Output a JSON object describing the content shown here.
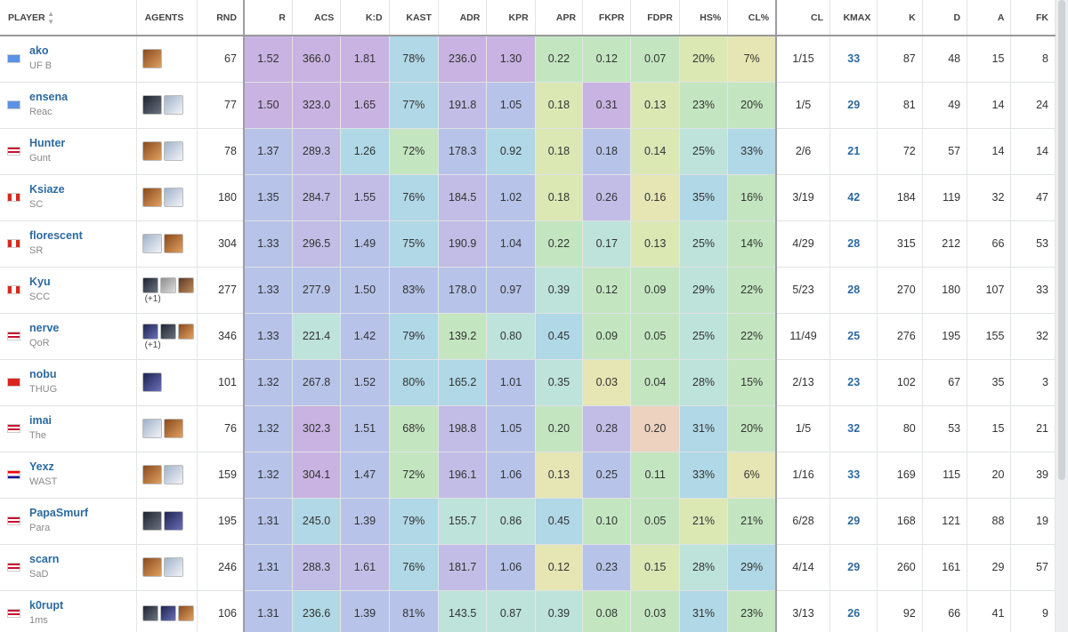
{
  "colors": {
    "purple_strong": "#c9b3e2",
    "purple": "#c2bde6",
    "lavender_blue": "#b7c3e8",
    "blue": "#b0d8e6",
    "teal": "#bde3da",
    "green": "#c3e6c0",
    "yellow_green": "#dbe8b4",
    "yellow": "#e5e6b4",
    "orange": "#ecd2bf",
    "link": "#2c6aa0"
  },
  "columns": [
    {
      "key": "player",
      "label": "PLAYER",
      "sortable": true
    },
    {
      "key": "agents",
      "label": "AGENTS",
      "sortable": false
    },
    {
      "key": "rnd",
      "label": "RND",
      "sortable": true
    },
    {
      "key": "r",
      "label": "R",
      "sortable": true
    },
    {
      "key": "acs",
      "label": "ACS",
      "sortable": true
    },
    {
      "key": "kd",
      "label": "K:D",
      "sortable": true
    },
    {
      "key": "kast",
      "label": "KAST",
      "sortable": true
    },
    {
      "key": "adr",
      "label": "ADR",
      "sortable": true
    },
    {
      "key": "kpr",
      "label": "KPR",
      "sortable": true
    },
    {
      "key": "apr",
      "label": "APR",
      "sortable": true
    },
    {
      "key": "fkpr",
      "label": "FKPR",
      "sortable": true
    },
    {
      "key": "fdpr",
      "label": "FDPR",
      "sortable": true
    },
    {
      "key": "hs",
      "label": "HS%",
      "sortable": true
    },
    {
      "key": "cl_pct",
      "label": "CL%",
      "sortable": true
    },
    {
      "key": "cl",
      "label": "CL",
      "sortable": false
    },
    {
      "key": "kmax",
      "label": "KMAX",
      "sortable": true
    },
    {
      "key": "k",
      "label": "K",
      "sortable": true
    },
    {
      "key": "d",
      "label": "D",
      "sortable": true
    },
    {
      "key": "a",
      "label": "A",
      "sortable": true
    },
    {
      "key": "fk",
      "label": "FK",
      "sortable": true
    }
  ],
  "rows": [
    {
      "name": "ako",
      "team": "UF B",
      "flag": "un",
      "agents": [
        "orange-agent"
      ],
      "more": "",
      "rnd": "67",
      "r": "1.52",
      "acs": "366.0",
      "kd": "1.81",
      "kast": "78%",
      "adr": "236.0",
      "kpr": "1.30",
      "apr": "0.22",
      "fkpr": "0.12",
      "fdpr": "0.07",
      "hs": "20%",
      "cl_pct": "7%",
      "cl": "1/15",
      "kmax": "33",
      "k": "87",
      "d": "48",
      "a": "15",
      "fk": "8",
      "heat": {
        "r": "purple_strong",
        "acs": "purple_strong",
        "kd": "purple_strong",
        "kast": "blue",
        "adr": "purple_strong",
        "kpr": "purple_strong",
        "apr": "green",
        "fkpr": "green",
        "fdpr": "green",
        "hs": "yellow_green",
        "cl_pct": "yellow"
      }
    },
    {
      "name": "ensena",
      "team": "Reac",
      "flag": "un",
      "agents": [
        "dark-agent",
        "white-agent"
      ],
      "more": "",
      "rnd": "77",
      "r": "1.50",
      "acs": "323.0",
      "kd": "1.65",
      "kast": "77%",
      "adr": "191.8",
      "kpr": "1.05",
      "apr": "0.18",
      "fkpr": "0.31",
      "fdpr": "0.13",
      "hs": "23%",
      "cl_pct": "20%",
      "cl": "1/5",
      "kmax": "29",
      "k": "81",
      "d": "49",
      "a": "14",
      "fk": "24",
      "heat": {
        "r": "purple_strong",
        "acs": "purple_strong",
        "kd": "purple_strong",
        "kast": "blue",
        "adr": "purple",
        "kpr": "lavender_blue",
        "apr": "yellow_green",
        "fkpr": "purple_strong",
        "fdpr": "yellow_green",
        "hs": "green",
        "cl_pct": "green"
      }
    },
    {
      "name": "Hunter",
      "team": "Gunt",
      "flag": "us",
      "agents": [
        "orange-agent",
        "white-agent"
      ],
      "more": "",
      "rnd": "78",
      "r": "1.37",
      "acs": "289.3",
      "kd": "1.26",
      "kast": "72%",
      "adr": "178.3",
      "kpr": "0.92",
      "apr": "0.18",
      "fkpr": "0.18",
      "fdpr": "0.14",
      "hs": "25%",
      "cl_pct": "33%",
      "cl": "2/6",
      "kmax": "21",
      "k": "72",
      "d": "57",
      "a": "14",
      "fk": "14",
      "heat": {
        "r": "lavender_blue",
        "acs": "purple",
        "kd": "blue",
        "kast": "green",
        "adr": "lavender_blue",
        "kpr": "blue",
        "apr": "yellow_green",
        "fkpr": "lavender_blue",
        "fdpr": "yellow_green",
        "hs": "teal",
        "cl_pct": "blue"
      }
    },
    {
      "name": "Ksiaze",
      "team": "SC",
      "flag": "ca",
      "agents": [
        "orange-agent",
        "white-agent"
      ],
      "more": "",
      "rnd": "180",
      "r": "1.35",
      "acs": "284.7",
      "kd": "1.55",
      "kast": "76%",
      "adr": "184.5",
      "kpr": "1.02",
      "apr": "0.18",
      "fkpr": "0.26",
      "fdpr": "0.16",
      "hs": "35%",
      "cl_pct": "16%",
      "cl": "3/19",
      "kmax": "42",
      "k": "184",
      "d": "119",
      "a": "32",
      "fk": "47",
      "heat": {
        "r": "lavender_blue",
        "acs": "purple",
        "kd": "purple",
        "kast": "blue",
        "adr": "purple",
        "kpr": "lavender_blue",
        "apr": "yellow_green",
        "fkpr": "purple",
        "fdpr": "yellow",
        "hs": "blue",
        "cl_pct": "green"
      }
    },
    {
      "name": "florescent",
      "team": "SR",
      "flag": "ca",
      "agents": [
        "white-agent",
        "orange-agent"
      ],
      "more": "",
      "rnd": "304",
      "r": "1.33",
      "acs": "296.5",
      "kd": "1.49",
      "kast": "75%",
      "adr": "190.9",
      "kpr": "1.04",
      "apr": "0.22",
      "fkpr": "0.17",
      "fdpr": "0.13",
      "hs": "25%",
      "cl_pct": "14%",
      "cl": "4/29",
      "kmax": "28",
      "k": "315",
      "d": "212",
      "a": "66",
      "fk": "53",
      "heat": {
        "r": "lavender_blue",
        "acs": "purple",
        "kd": "lavender_blue",
        "kast": "blue",
        "adr": "purple",
        "kpr": "lavender_blue",
        "apr": "green",
        "fkpr": "teal",
        "fdpr": "yellow_green",
        "hs": "teal",
        "cl_pct": "green"
      }
    },
    {
      "name": "Kyu",
      "team": "SCC",
      "flag": "ca",
      "agents": [
        "dark-agent",
        "gray-agent",
        "brown-agent"
      ],
      "more": "(+1)",
      "rnd": "277",
      "r": "1.33",
      "acs": "277.9",
      "kd": "1.50",
      "kast": "83%",
      "adr": "178.0",
      "kpr": "0.97",
      "apr": "0.39",
      "fkpr": "0.12",
      "fdpr": "0.09",
      "hs": "29%",
      "cl_pct": "22%",
      "cl": "5/23",
      "kmax": "28",
      "k": "270",
      "d": "180",
      "a": "107",
      "fk": "33",
      "heat": {
        "r": "lavender_blue",
        "acs": "lavender_blue",
        "kd": "lavender_blue",
        "kast": "lavender_blue",
        "adr": "lavender_blue",
        "kpr": "lavender_blue",
        "apr": "teal",
        "fkpr": "green",
        "fdpr": "green",
        "hs": "teal",
        "cl_pct": "green"
      }
    },
    {
      "name": "nerve",
      "team": "QoR",
      "flag": "us",
      "agents": [
        "navy-agent",
        "dark-agent",
        "orange-agent"
      ],
      "more": "(+1)",
      "rnd": "346",
      "r": "1.33",
      "acs": "221.4",
      "kd": "1.42",
      "kast": "79%",
      "adr": "139.2",
      "kpr": "0.80",
      "apr": "0.45",
      "fkpr": "0.09",
      "fdpr": "0.05",
      "hs": "25%",
      "cl_pct": "22%",
      "cl": "11/49",
      "kmax": "25",
      "k": "276",
      "d": "195",
      "a": "155",
      "fk": "32",
      "heat": {
        "r": "lavender_blue",
        "acs": "teal",
        "kd": "lavender_blue",
        "kast": "blue",
        "adr": "green",
        "kpr": "teal",
        "apr": "blue",
        "fkpr": "green",
        "fdpr": "green",
        "hs": "teal",
        "cl_pct": "green"
      }
    },
    {
      "name": "nobu",
      "team": "THUG",
      "flag": "vn",
      "agents": [
        "navy-agent"
      ],
      "more": "",
      "rnd": "101",
      "r": "1.32",
      "acs": "267.8",
      "kd": "1.52",
      "kast": "80%",
      "adr": "165.2",
      "kpr": "1.01",
      "apr": "0.35",
      "fkpr": "0.03",
      "fdpr": "0.04",
      "hs": "28%",
      "cl_pct": "15%",
      "cl": "2/13",
      "kmax": "23",
      "k": "102",
      "d": "67",
      "a": "35",
      "fk": "3",
      "heat": {
        "r": "lavender_blue",
        "acs": "lavender_blue",
        "kd": "lavender_blue",
        "kast": "blue",
        "adr": "blue",
        "kpr": "lavender_blue",
        "apr": "teal",
        "fkpr": "yellow",
        "fdpr": "green",
        "hs": "teal",
        "cl_pct": "green"
      }
    },
    {
      "name": "imai",
      "team": "The",
      "flag": "us",
      "agents": [
        "white-agent",
        "orange-agent"
      ],
      "more": "",
      "rnd": "76",
      "r": "1.32",
      "acs": "302.3",
      "kd": "1.51",
      "kast": "68%",
      "adr": "198.8",
      "kpr": "1.05",
      "apr": "0.20",
      "fkpr": "0.28",
      "fdpr": "0.20",
      "hs": "31%",
      "cl_pct": "20%",
      "cl": "1/5",
      "kmax": "32",
      "k": "80",
      "d": "53",
      "a": "15",
      "fk": "21",
      "heat": {
        "r": "lavender_blue",
        "acs": "purple_strong",
        "kd": "lavender_blue",
        "kast": "green",
        "adr": "purple",
        "kpr": "lavender_blue",
        "apr": "green",
        "fkpr": "purple",
        "fdpr": "orange",
        "hs": "blue",
        "cl_pct": "green"
      }
    },
    {
      "name": "Yexz",
      "team": "WAST",
      "flag": "hr",
      "agents": [
        "orange-agent",
        "white-agent"
      ],
      "more": "",
      "rnd": "159",
      "r": "1.32",
      "acs": "304.1",
      "kd": "1.47",
      "kast": "72%",
      "adr": "196.1",
      "kpr": "1.06",
      "apr": "0.13",
      "fkpr": "0.25",
      "fdpr": "0.11",
      "hs": "33%",
      "cl_pct": "6%",
      "cl": "1/16",
      "kmax": "33",
      "k": "169",
      "d": "115",
      "a": "20",
      "fk": "39",
      "heat": {
        "r": "lavender_blue",
        "acs": "purple_strong",
        "kd": "lavender_blue",
        "kast": "green",
        "adr": "purple",
        "kpr": "lavender_blue",
        "apr": "yellow",
        "fkpr": "lavender_blue",
        "fdpr": "green",
        "hs": "blue",
        "cl_pct": "yellow"
      }
    },
    {
      "name": "PapaSmurf",
      "team": "Para",
      "flag": "us",
      "agents": [
        "dark-agent",
        "navy-agent"
      ],
      "more": "",
      "rnd": "195",
      "r": "1.31",
      "acs": "245.0",
      "kd": "1.39",
      "kast": "79%",
      "adr": "155.7",
      "kpr": "0.86",
      "apr": "0.45",
      "fkpr": "0.10",
      "fdpr": "0.05",
      "hs": "21%",
      "cl_pct": "21%",
      "cl": "6/28",
      "kmax": "29",
      "k": "168",
      "d": "121",
      "a": "88",
      "fk": "19",
      "heat": {
        "r": "lavender_blue",
        "acs": "blue",
        "kd": "lavender_blue",
        "kast": "blue",
        "adr": "teal",
        "kpr": "teal",
        "apr": "blue",
        "fkpr": "green",
        "fdpr": "green",
        "hs": "yellow_green",
        "cl_pct": "green"
      }
    },
    {
      "name": "scarn",
      "team": "SaD",
      "flag": "us",
      "agents": [
        "orange-agent",
        "white-agent"
      ],
      "more": "",
      "rnd": "246",
      "r": "1.31",
      "acs": "288.3",
      "kd": "1.61",
      "kast": "76%",
      "adr": "181.7",
      "kpr": "1.06",
      "apr": "0.12",
      "fkpr": "0.23",
      "fdpr": "0.15",
      "hs": "28%",
      "cl_pct": "29%",
      "cl": "4/14",
      "kmax": "29",
      "k": "260",
      "d": "161",
      "a": "29",
      "fk": "57",
      "heat": {
        "r": "lavender_blue",
        "acs": "purple",
        "kd": "purple",
        "kast": "blue",
        "adr": "purple",
        "kpr": "lavender_blue",
        "apr": "yellow",
        "fkpr": "lavender_blue",
        "fdpr": "yellow_green",
        "hs": "teal",
        "cl_pct": "blue"
      }
    },
    {
      "name": "k0rupt",
      "team": "1ms",
      "flag": "us",
      "agents": [
        "dark-agent",
        "navy-agent",
        "orange-agent"
      ],
      "more": "",
      "rnd": "106",
      "r": "1.31",
      "acs": "236.6",
      "kd": "1.39",
      "kast": "81%",
      "adr": "143.5",
      "kpr": "0.87",
      "apr": "0.39",
      "fkpr": "0.08",
      "fdpr": "0.03",
      "hs": "31%",
      "cl_pct": "23%",
      "cl": "3/13",
      "kmax": "26",
      "k": "92",
      "d": "66",
      "a": "41",
      "fk": "9",
      "heat": {
        "r": "lavender_blue",
        "acs": "blue",
        "kd": "lavender_blue",
        "kast": "lavender_blue",
        "adr": "teal",
        "kpr": "teal",
        "apr": "teal",
        "fkpr": "green",
        "fdpr": "green",
        "hs": "blue",
        "cl_pct": "green"
      }
    }
  ]
}
